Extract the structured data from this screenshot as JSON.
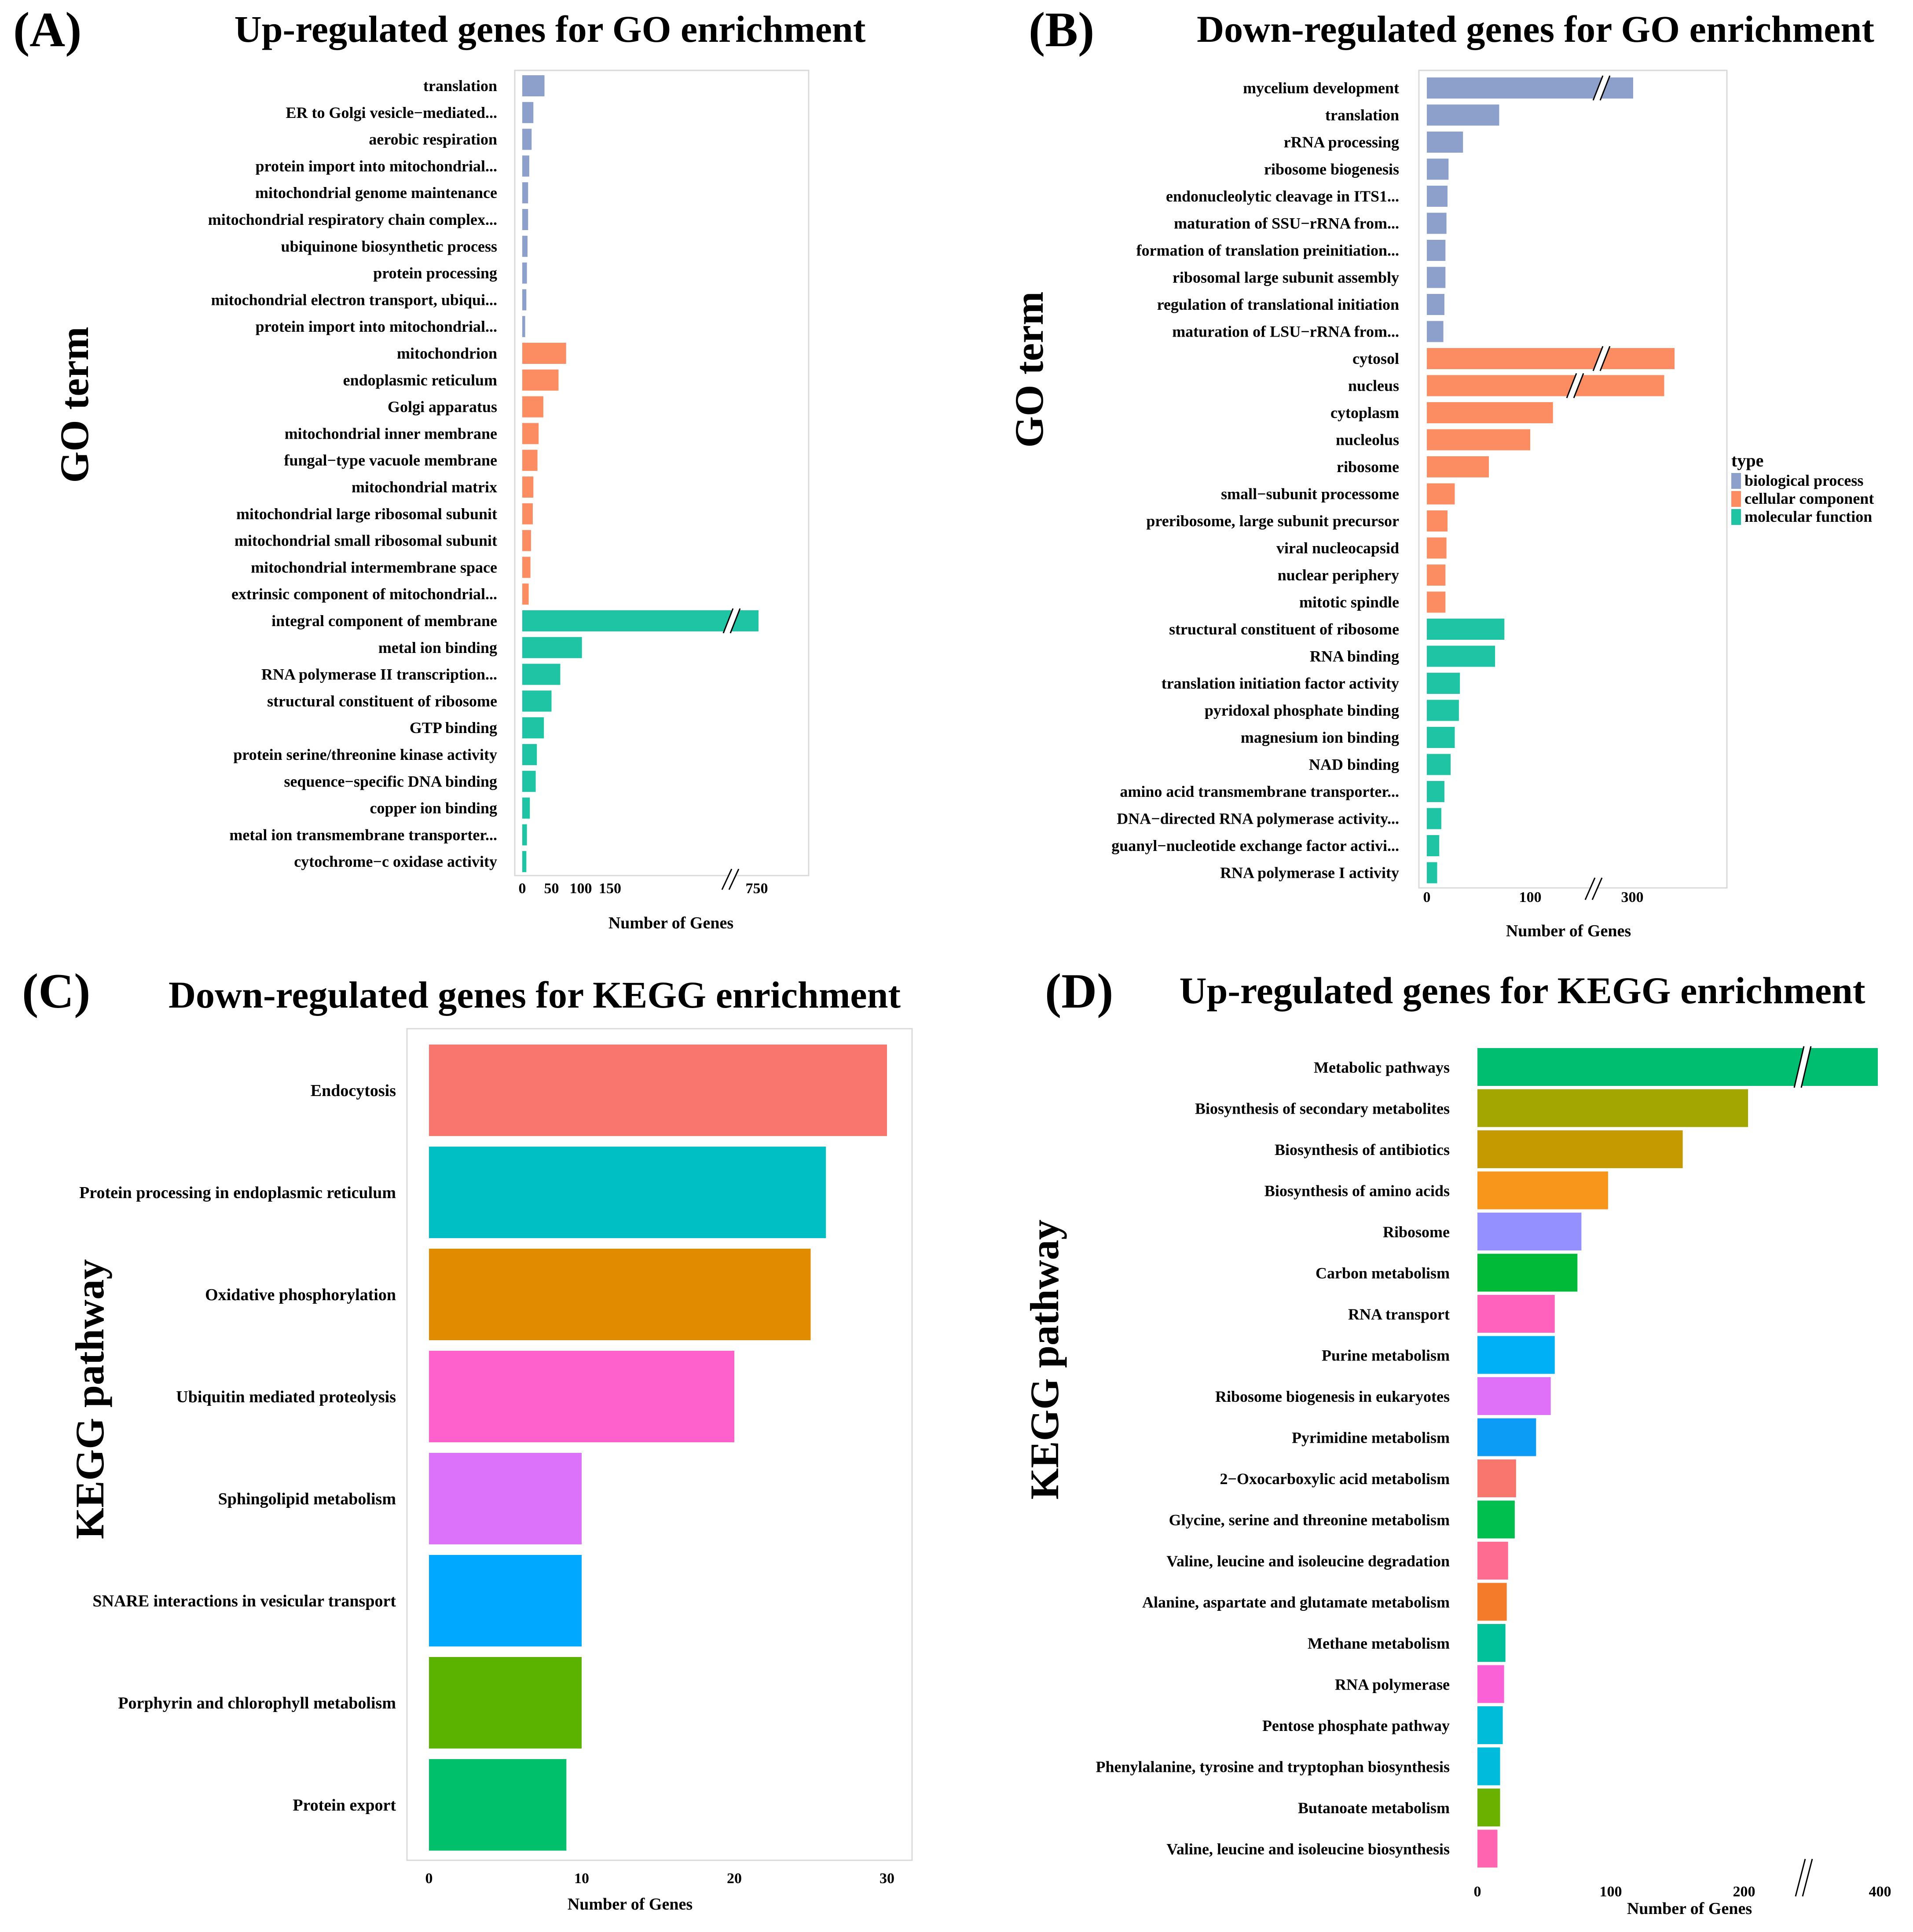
{
  "colors": {
    "biological_process": "#8DA0CB",
    "cellular_component": "#FC8D62",
    "molecular_function": "#1EC4A4",
    "frame": "#D9D9D9",
    "text": "#000000"
  },
  "chart_data": [
    {
      "type": "bar",
      "orientation": "horizontal",
      "panel": "(A)",
      "title": "Up-regulated genes for GO enrichment",
      "ylabel": "GO term",
      "xlabel": "Number of Genes",
      "axis_break": {
        "from": 150,
        "to": 750
      },
      "xticks": [
        "0",
        "50",
        "100",
        "150",
        "750"
      ],
      "categories": [
        "translation",
        "ER to Golgi vesicle−mediated...",
        "aerobic respiration",
        "protein import into mitochondrial...",
        "mitochondrial genome maintenance",
        "mitochondrial respiratory chain complex...",
        "ubiquinone biosynthetic process",
        "protein processing",
        "mitochondrial electron transport, ubiqui...",
        "protein import into mitochondrial...",
        "mitochondrion",
        "endoplasmic reticulum",
        "Golgi apparatus",
        "mitochondrial inner membrane",
        "fungal−type vacuole membrane",
        "mitochondrial matrix",
        "mitochondrial large ribosomal subunit",
        "mitochondrial small ribosomal subunit",
        "mitochondrial intermembrane space",
        "extrinsic component of mitochondrial...",
        "integral component of membrane",
        "metal ion binding",
        "RNA polymerase II transcription...",
        "structural constituent of ribosome",
        "GTP binding",
        "protein serine/threonine kinase activity",
        "sequence−specific DNA binding",
        "copper ion binding",
        "metal ion transmembrane transporter...",
        "cytochrome−c oxidase activity"
      ],
      "values": [
        38,
        19,
        16,
        12,
        10,
        10,
        9,
        8,
        7,
        5,
        75,
        62,
        36,
        28,
        26,
        19,
        18,
        15,
        14,
        11,
        780,
        102,
        65,
        50,
        37,
        25,
        23,
        13,
        8,
        7
      ],
      "types": [
        "biological process",
        "biological process",
        "biological process",
        "biological process",
        "biological process",
        "biological process",
        "biological process",
        "biological process",
        "biological process",
        "biological process",
        "cellular component",
        "cellular component",
        "cellular component",
        "cellular component",
        "cellular component",
        "cellular component",
        "cellular component",
        "cellular component",
        "cellular component",
        "cellular component",
        "molecular function",
        "molecular function",
        "molecular function",
        "molecular function",
        "molecular function",
        "molecular function",
        "molecular function",
        "molecular function",
        "molecular function",
        "molecular function"
      ]
    },
    {
      "type": "bar",
      "orientation": "horizontal",
      "panel": "(B)",
      "title": "Down-regulated genes for GO enrichment",
      "ylabel": "GO term",
      "xlabel": "Number of Genes",
      "axis_break": {
        "from": 150,
        "to": 300
      },
      "xticks": [
        "0",
        "100",
        "300"
      ],
      "legend": {
        "title": "type",
        "entries": [
          "biological process",
          "cellular component",
          "molecular function"
        ]
      },
      "categories": [
        "mycelium development",
        "translation",
        "rRNA processing",
        "ribosome biogenesis",
        "endonucleolytic cleavage in ITS1...",
        "maturation of SSU−rRNA from...",
        "formation of translation preinitiation...",
        "ribosomal large subunit assembly",
        "regulation of translational initiation",
        "maturation of LSU−rRNA from...",
        "cytosol",
        "nucleus",
        "cytoplasm",
        "nucleolus",
        "ribosome",
        "small−subunit processome",
        "preribosome, large subunit precursor",
        "viral nucleocapsid",
        "nuclear periphery",
        "mitotic spindle",
        "structural constituent of ribosome",
        "RNA binding",
        "translation initiation factor activity",
        "pyridoxal phosphate binding",
        "magnesium ion binding",
        "NAD binding",
        "amino acid transmembrane transporter...",
        "DNA−directed RNA polymerase activity...",
        "guanyl−nucleotide exchange factor activi...",
        "RNA polymerase I activity"
      ],
      "values": [
        320,
        70,
        35,
        21,
        20,
        19,
        18,
        18,
        17,
        16,
        360,
        350,
        122,
        100,
        60,
        27,
        20,
        19,
        18,
        18,
        75,
        66,
        32,
        31,
        27,
        23,
        17,
        14,
        12,
        10
      ],
      "types": [
        "biological process",
        "biological process",
        "biological process",
        "biological process",
        "biological process",
        "biological process",
        "biological process",
        "biological process",
        "biological process",
        "biological process",
        "cellular component",
        "cellular component",
        "cellular component",
        "cellular component",
        "cellular component",
        "cellular component",
        "cellular component",
        "cellular component",
        "cellular component",
        "cellular component",
        "molecular function",
        "molecular function",
        "molecular function",
        "molecular function",
        "molecular function",
        "molecular function",
        "molecular function",
        "molecular function",
        "molecular function",
        "molecular function"
      ]
    },
    {
      "type": "bar",
      "orientation": "horizontal",
      "panel": "(C)",
      "title": "Down-regulated genes for KEGG enrichment",
      "ylabel": "KEGG pathway",
      "xlabel": "Number of Genes",
      "xticks": [
        "0",
        "10",
        "20",
        "30"
      ],
      "categories": [
        "Endocytosis",
        "Protein processing in endoplasmic reticulum",
        "Oxidative phosphorylation",
        "Ubiquitin mediated proteolysis",
        "Sphingolipid metabolism",
        "SNARE interactions in vesicular transport",
        "Porphyrin and chlorophyll metabolism",
        "Protein export"
      ],
      "values": [
        30,
        26,
        25,
        20,
        10,
        10,
        10,
        9
      ],
      "colors": [
        "#F8766D",
        "#00BFC4",
        "#E08B00",
        "#FF61CC",
        "#DC71FA",
        "#00A9FF",
        "#5BB300",
        "#00C06B"
      ]
    },
    {
      "type": "bar",
      "orientation": "horizontal",
      "panel": "(D)",
      "title": "Up-regulated genes for KEGG enrichment",
      "ylabel": "KEGG pathway",
      "xlabel": "Number of Genes",
      "axis_break": {
        "from": 230,
        "to": 380
      },
      "xticks": [
        "0",
        "100",
        "200",
        "400"
      ],
      "categories": [
        "Metabolic pathways",
        "Biosynthesis of secondary metabolites",
        "Biosynthesis of antibiotics",
        "Biosynthesis of amino acids",
        "Ribosome",
        "Carbon metabolism",
        "RNA transport",
        "Purine metabolism",
        "Ribosome biogenesis in eukaryotes",
        "Pyrimidine metabolism",
        "2−Oxocarboxylic acid metabolism",
        "Glycine, serine and threonine metabolism",
        "Valine, leucine and isoleucine degradation",
        "Alanine, aspartate and glutamate metabolism",
        "Methane metabolism",
        "RNA polymerase",
        "Pentose phosphate pathway",
        "Phenylalanine, tyrosine and tryptophan biosynthesis",
        "Butanoate metabolism",
        "Valine, leucine and isoleucine biosynthesis"
      ],
      "values": [
        420,
        203,
        154,
        98,
        78,
        75,
        58,
        58,
        55,
        44,
        29,
        28,
        23,
        22,
        21,
        20,
        19,
        17,
        17,
        15
      ],
      "colors": [
        "#00BE70",
        "#A3A500",
        "#C49A00",
        "#F8961C",
        "#9590FF",
        "#00BA38",
        "#FF62BC",
        "#00B0F6",
        "#DF70F8",
        "#0C9CF5",
        "#F8766D",
        "#00BF4F",
        "#FF6C91",
        "#F37B2A",
        "#00C19A",
        "#FB61D7",
        "#00BCD8",
        "#00BBDB",
        "#6BB100",
        "#FF64B0"
      ]
    }
  ]
}
